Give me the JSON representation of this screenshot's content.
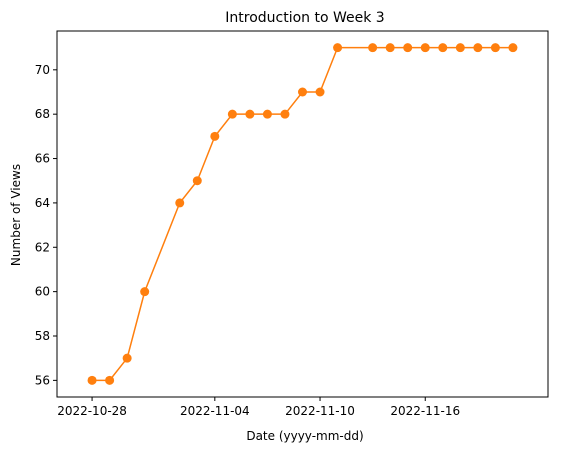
{
  "chart_data": {
    "type": "line",
    "title": "Introduction to Week 3",
    "xlabel": "Date (yyyy-mm-dd)",
    "ylabel": "Number of Views",
    "x_ticks": [
      "2022-10-28",
      "2022-11-04",
      "2022-11-10",
      "2022-11-16"
    ],
    "y_ticks": [
      56,
      58,
      60,
      62,
      64,
      66,
      68,
      70
    ],
    "xlim": [
      "2022-10-26",
      "2022-11-23"
    ],
    "ylim": [
      55.25,
      71.75
    ],
    "grid": false,
    "line_color": "#ff7f0e",
    "series": [
      {
        "x": [
          "2022-10-28",
          "2022-10-29",
          "2022-10-30",
          "2022-10-31",
          "2022-11-02",
          "2022-11-03",
          "2022-11-04",
          "2022-11-05",
          "2022-11-06",
          "2022-11-07",
          "2022-11-08",
          "2022-11-09",
          "2022-11-10",
          "2022-11-11",
          "2022-11-13",
          "2022-11-14",
          "2022-11-15",
          "2022-11-16",
          "2022-11-17",
          "2022-11-18",
          "2022-11-19",
          "2022-11-20",
          "2022-11-21"
        ],
        "values": [
          56,
          56,
          57,
          60,
          64,
          65,
          67,
          68,
          68,
          68,
          68,
          69,
          69,
          71,
          71,
          71,
          71,
          71,
          71,
          71,
          71,
          71,
          71
        ]
      }
    ]
  }
}
